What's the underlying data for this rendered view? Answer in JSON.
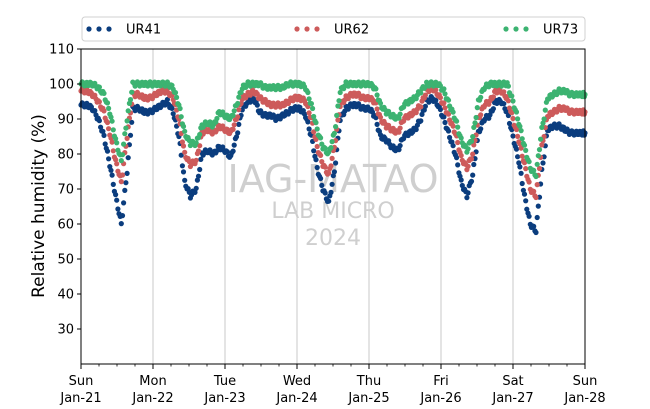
{
  "chart_data": {
    "type": "scatter",
    "ylabel": "Relative humidity (%)",
    "xlabel": "",
    "ylim": [
      20,
      110
    ],
    "yticks": [
      30,
      40,
      50,
      60,
      70,
      80,
      90,
      100,
      110
    ],
    "xlim": [
      0,
      7
    ],
    "xticks": [
      {
        "x": 0,
        "day": "Sun",
        "date": "Jan-21"
      },
      {
        "x": 1,
        "day": "Mon",
        "date": "Jan-22"
      },
      {
        "x": 2,
        "day": "Tue",
        "date": "Jan-23"
      },
      {
        "x": 3,
        "day": "Wed",
        "date": "Jan-24"
      },
      {
        "x": 4,
        "day": "Thu",
        "date": "Jan-25"
      },
      {
        "x": 5,
        "day": "Fri",
        "date": "Jan-26"
      },
      {
        "x": 6,
        "day": "Sat",
        "date": "Jan-27"
      },
      {
        "x": 7,
        "day": "Sun",
        "date": "Jan-28"
      }
    ],
    "grid": "vertical-major",
    "legend_position": "top",
    "watermark": [
      "IAG-MATAO",
      "LAB MICRO",
      "2024"
    ],
    "series": [
      {
        "name": "UR41",
        "color": "#0b3d7e",
        "x": [
          0,
          0.08,
          0.16,
          0.24,
          0.32,
          0.4,
          0.48,
          0.56,
          0.64,
          0.72,
          0.8,
          0.88,
          0.96,
          1.04,
          1.12,
          1.2,
          1.28,
          1.36,
          1.44,
          1.52,
          1.6,
          1.68,
          1.76,
          1.84,
          1.92,
          2.0,
          2.08,
          2.16,
          2.24,
          2.32,
          2.4,
          2.48,
          2.56,
          2.64,
          2.72,
          2.8,
          2.88,
          2.96,
          3.04,
          3.12,
          3.2,
          3.28,
          3.36,
          3.44,
          3.52,
          3.6,
          3.68,
          3.76,
          3.84,
          3.92,
          4.0,
          4.08,
          4.16,
          4.24,
          4.32,
          4.4,
          4.48,
          4.56,
          4.64,
          4.72,
          4.8,
          4.88,
          4.96,
          5.04,
          5.12,
          5.2,
          5.28,
          5.36,
          5.44,
          5.52,
          5.6,
          5.68,
          5.76,
          5.84,
          5.92,
          6.0,
          6.08,
          6.16,
          6.24,
          6.32,
          6.4,
          6.48,
          6.56,
          6.64,
          6.72,
          6.8,
          6.88,
          6.96,
          7.0
        ],
        "y": [
          94,
          94,
          93,
          90,
          85,
          77,
          68,
          60,
          75,
          93,
          93,
          92,
          92,
          93,
          94,
          95,
          92,
          85,
          72,
          68,
          70,
          80,
          81,
          80,
          82,
          81,
          79,
          85,
          93,
          95,
          96,
          92,
          91,
          91,
          90,
          91,
          92,
          93,
          93,
          91,
          85,
          76,
          70,
          66,
          75,
          90,
          93,
          94,
          94,
          93,
          93,
          91,
          85,
          84,
          82,
          81,
          85,
          86,
          87,
          90,
          95,
          96,
          94,
          90,
          85,
          80,
          72,
          68,
          74,
          86,
          90,
          91,
          95,
          95,
          92,
          85,
          78,
          68,
          60,
          58,
          75,
          87,
          88,
          88,
          87,
          86,
          86,
          86,
          86
        ]
      },
      {
        "name": "UR62",
        "color": "#cd5b5b",
        "x": [
          0,
          0.08,
          0.16,
          0.24,
          0.32,
          0.4,
          0.48,
          0.56,
          0.64,
          0.72,
          0.8,
          0.88,
          0.96,
          1.04,
          1.12,
          1.2,
          1.28,
          1.36,
          1.44,
          1.52,
          1.6,
          1.68,
          1.76,
          1.84,
          1.92,
          2.0,
          2.08,
          2.16,
          2.24,
          2.32,
          2.4,
          2.48,
          2.56,
          2.64,
          2.72,
          2.8,
          2.88,
          2.96,
          3.04,
          3.12,
          3.2,
          3.28,
          3.36,
          3.44,
          3.52,
          3.6,
          3.68,
          3.76,
          3.84,
          3.92,
          4.0,
          4.08,
          4.16,
          4.24,
          4.32,
          4.4,
          4.48,
          4.56,
          4.64,
          4.72,
          4.8,
          4.88,
          4.96,
          5.04,
          5.12,
          5.2,
          5.28,
          5.36,
          5.44,
          5.52,
          5.6,
          5.68,
          5.76,
          5.84,
          5.92,
          6.0,
          6.08,
          6.16,
          6.24,
          6.32,
          6.4,
          6.48,
          6.56,
          6.64,
          6.72,
          6.8,
          6.88,
          6.96,
          7.0
        ],
        "y": [
          98,
          98,
          97,
          95,
          92,
          86,
          78,
          72,
          85,
          97,
          97,
          96,
          96,
          97,
          98,
          98,
          96,
          90,
          80,
          77,
          78,
          86,
          87,
          86,
          88,
          87,
          86,
          90,
          96,
          97,
          98,
          96,
          95,
          94,
          94,
          94,
          95,
          96,
          96,
          95,
          90,
          82,
          77,
          74,
          82,
          94,
          96,
          97,
          97,
          96,
          96,
          95,
          90,
          88,
          87,
          86,
          90,
          91,
          92,
          94,
          98,
          99,
          97,
          94,
          90,
          86,
          79,
          76,
          80,
          90,
          94,
          95,
          98,
          98,
          96,
          90,
          84,
          77,
          70,
          68,
          82,
          91,
          92,
          93,
          93,
          92,
          92,
          92,
          92
        ]
      },
      {
        "name": "UR73",
        "color": "#3cb371",
        "x": [
          0,
          0.08,
          0.16,
          0.24,
          0.32,
          0.4,
          0.48,
          0.56,
          0.64,
          0.72,
          0.8,
          0.88,
          0.96,
          1.04,
          1.12,
          1.2,
          1.28,
          1.36,
          1.44,
          1.52,
          1.6,
          1.68,
          1.76,
          1.84,
          1.92,
          2.0,
          2.08,
          2.16,
          2.24,
          2.32,
          2.4,
          2.48,
          2.56,
          2.64,
          2.72,
          2.8,
          2.88,
          2.96,
          3.04,
          3.12,
          3.2,
          3.28,
          3.36,
          3.44,
          3.52,
          3.6,
          3.68,
          3.76,
          3.84,
          3.92,
          4.0,
          4.08,
          4.16,
          4.24,
          4.32,
          4.4,
          4.48,
          4.56,
          4.64,
          4.72,
          4.8,
          4.88,
          4.96,
          5.04,
          5.12,
          5.2,
          5.28,
          5.36,
          5.44,
          5.52,
          5.6,
          5.68,
          5.76,
          5.84,
          5.92,
          6.0,
          6.08,
          6.16,
          6.24,
          6.32,
          6.4,
          6.48,
          6.56,
          6.64,
          6.72,
          6.8,
          6.88,
          6.96,
          7.0
        ],
        "y": [
          100,
          100,
          100,
          99,
          97,
          92,
          84,
          78,
          90,
          100,
          100,
          100,
          100,
          100,
          100,
          100,
          99,
          94,
          86,
          83,
          83,
          88,
          89,
          88,
          92,
          91,
          90,
          94,
          99,
          100,
          100,
          100,
          99,
          99,
          99,
          99,
          100,
          100,
          100,
          99,
          94,
          87,
          82,
          80,
          86,
          98,
          100,
          100,
          100,
          100,
          100,
          99,
          94,
          92,
          91,
          90,
          94,
          95,
          96,
          98,
          100,
          100,
          100,
          98,
          94,
          90,
          84,
          81,
          85,
          95,
          99,
          100,
          100,
          100,
          100,
          95,
          89,
          82,
          76,
          74,
          87,
          96,
          97,
          98,
          98,
          97,
          97,
          97,
          97
        ]
      }
    ]
  }
}
